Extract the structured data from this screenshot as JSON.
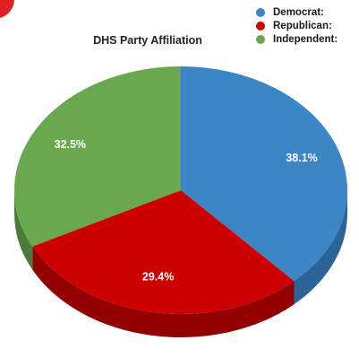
{
  "chart_data": {
    "type": "pie",
    "style": "3d",
    "title": "DHS Party Affiliation",
    "legend_position": "top-right",
    "slices": [
      {
        "label": "Democrat:",
        "value": 38.1,
        "display": "38.1%",
        "color": "#3d86c6",
        "side_color": "#2d6498"
      },
      {
        "label": "Republican:",
        "value": 29.4,
        "display": "29.4%",
        "color": "#cc0000",
        "side_color": "#930000"
      },
      {
        "label": "Independent:",
        "value": 32.5,
        "display": "32.5%",
        "color": "#6aa84f",
        "side_color": "#4c7a38"
      }
    ]
  }
}
